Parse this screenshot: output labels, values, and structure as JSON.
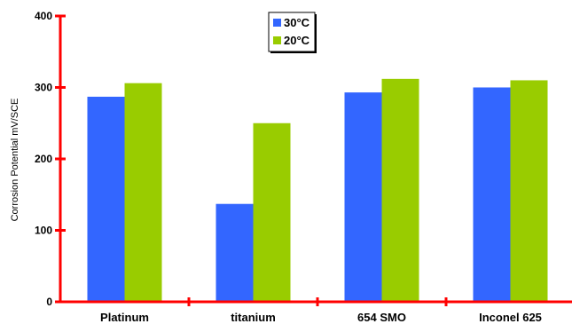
{
  "chart_data": {
    "type": "bar",
    "categories": [
      "Platinum",
      "titanium",
      "654 SMO",
      "Inconel 625"
    ],
    "series": [
      {
        "name": "30°C",
        "values": [
          287,
          137,
          293,
          300
        ],
        "color": "#3366ff"
      },
      {
        "name": "20°C",
        "values": [
          306,
          250,
          312,
          310
        ],
        "color": "#99cc00"
      }
    ],
    "title": "",
    "xlabel": "",
    "ylabel": "Corrosion Potential mV/SCE",
    "ylim": [
      0,
      400
    ],
    "yticks": [
      0,
      100,
      200,
      300,
      400
    ],
    "grid": false,
    "legend_position": "top-center",
    "axis_color": "#ff0000"
  }
}
